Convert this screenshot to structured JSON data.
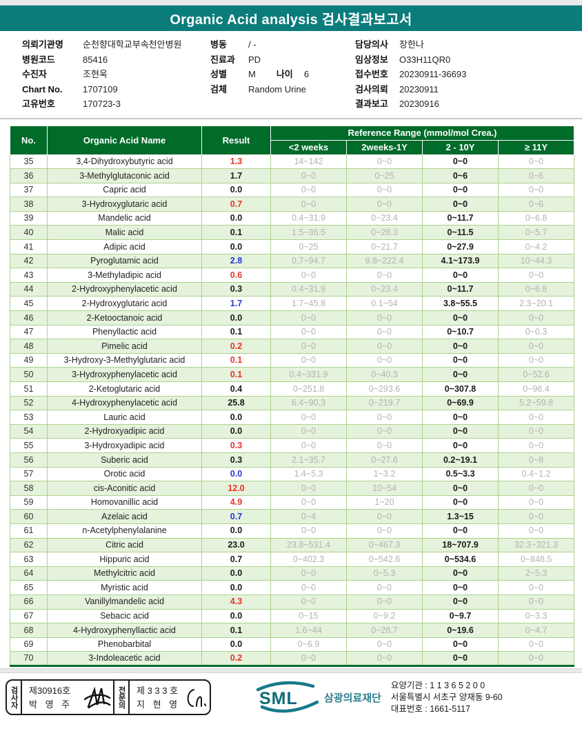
{
  "title": "Organic Acid analysis 검사결과보고서",
  "colors": {
    "banner_teal": "#0B7C7C",
    "table_header_green": "#016B2A",
    "row_alt_green": "#E5F2DC",
    "grid_green": "#ABD28D",
    "result_high_red": "#E8332A",
    "result_low_blue": "#2236D4",
    "reference_gray": "#B3B3B3",
    "logo_teal": "#157A8A"
  },
  "info": {
    "columns": [
      {
        "rows": [
          {
            "label": "의뢰기관명",
            "value": "순천향대학교부속천안병원"
          },
          {
            "label": "병원코드",
            "value": "85416"
          },
          {
            "label": "수진자",
            "value": "조현욱"
          },
          {
            "label": "Chart No.",
            "value": "1707109"
          },
          {
            "label": "고유번호",
            "value": "170723-3"
          }
        ]
      },
      {
        "rows": [
          {
            "label": "병동",
            "value": "/ -"
          },
          {
            "label": "진료과",
            "value": "PD"
          },
          {
            "label": "성별",
            "value": "M",
            "label2": "나이",
            "value2": "6"
          },
          {
            "label": "검체",
            "value": "Random Urine"
          }
        ]
      },
      {
        "rows": [
          {
            "label": "담당의사",
            "value": "장한나"
          },
          {
            "label": "임상정보",
            "value": "O33H11QR0"
          },
          {
            "label": "접수번호",
            "value": "20230911-36693"
          },
          {
            "label": "검사의뢰",
            "value": "20230911"
          },
          {
            "label": "결과보고",
            "value": "20230916"
          }
        ]
      }
    ]
  },
  "table": {
    "headers": {
      "no": "No.",
      "name": "Organic Acid Name",
      "result": "Result",
      "ref_group": "Reference Range (mmol/mol Crea.)",
      "age_cols": [
        "<2 weeks",
        "2weeks-1Y",
        "2 - 10Y",
        "≥ 11Y"
      ]
    },
    "rows": [
      {
        "no": "35",
        "name": "3,4-Dihydroxybutyric acid",
        "result": "1.3",
        "flag": "high",
        "ranges": [
          "14~142",
          "0~0",
          "0~0",
          "0~0"
        ]
      },
      {
        "no": "36",
        "name": "3-Methylglutaconic acid",
        "result": "1.7",
        "flag": "normal",
        "ranges": [
          "0~0",
          "0~25",
          "0~6",
          "0~6"
        ]
      },
      {
        "no": "37",
        "name": "Capric acid",
        "result": "0.0",
        "flag": "normal",
        "ranges": [
          "0~0",
          "0~0",
          "0~0",
          "0~0"
        ]
      },
      {
        "no": "38",
        "name": "3-Hydroxyglutaric acid",
        "result": "0.7",
        "flag": "high",
        "ranges": [
          "0~0",
          "0~0",
          "0~0",
          "0~6"
        ]
      },
      {
        "no": "39",
        "name": "Mandelic acid",
        "result": "0.0",
        "flag": "normal",
        "ranges": [
          "0.4~31.9",
          "0~23.4",
          "0~11.7",
          "0~6.8"
        ]
      },
      {
        "no": "40",
        "name": "Malic acid",
        "result": "0.1",
        "flag": "normal",
        "ranges": [
          "1.5~36.5",
          "0~28.3",
          "0~11.5",
          "0~5.7"
        ]
      },
      {
        "no": "41",
        "name": "Adipic acid",
        "result": "0.0",
        "flag": "normal",
        "ranges": [
          "0~25",
          "0~21.7",
          "0~27.9",
          "0~4.2"
        ]
      },
      {
        "no": "42",
        "name": "Pyroglutamic acid",
        "result": "2.8",
        "flag": "low",
        "ranges": [
          "0.7~94.7",
          "9.8~222.4",
          "4.1~173.9",
          "10~44.3"
        ]
      },
      {
        "no": "43",
        "name": "3-Methyladipic acid",
        "result": "0.6",
        "flag": "high",
        "ranges": [
          "0~0",
          "0~0",
          "0~0",
          "0~0"
        ]
      },
      {
        "no": "44",
        "name": "2-Hydroxyphenylacetic acid",
        "result": "0.3",
        "flag": "normal",
        "ranges": [
          "0.4~31.9",
          "0~23.4",
          "0~11.7",
          "0~6.8"
        ]
      },
      {
        "no": "45",
        "name": "2-Hydroxyglutaric acid",
        "result": "1.7",
        "flag": "low",
        "ranges": [
          "1.7~45.8",
          "0.1~54",
          "3.8~55.5",
          "2.3~20.1"
        ]
      },
      {
        "no": "46",
        "name": "2-Ketooctanoic acid",
        "result": "0.0",
        "flag": "normal",
        "ranges": [
          "0~0",
          "0~0",
          "0~0",
          "0~0"
        ]
      },
      {
        "no": "47",
        "name": "Phenyllactic acid",
        "result": "0.1",
        "flag": "normal",
        "ranges": [
          "0~0",
          "0~0",
          "0~10.7",
          "0~0.3"
        ]
      },
      {
        "no": "48",
        "name": "Pimelic acid",
        "result": "0.2",
        "flag": "high",
        "ranges": [
          "0~0",
          "0~0",
          "0~0",
          "0~0"
        ]
      },
      {
        "no": "49",
        "name": "3-Hydroxy-3-Methylglutaric acid",
        "result": "0.1",
        "flag": "high",
        "ranges": [
          "0~0",
          "0~0",
          "0~0",
          "0~0"
        ]
      },
      {
        "no": "50",
        "name": "3-Hydroxyphenylacetic acid",
        "result": "0.1",
        "flag": "high",
        "ranges": [
          "0.4~331.9",
          "0~40.3",
          "0~0",
          "0~52.6"
        ]
      },
      {
        "no": "51",
        "name": "2-Ketoglutaric acid",
        "result": "0.4",
        "flag": "normal",
        "ranges": [
          "0~251.8",
          "0~293.6",
          "0~307.8",
          "0~96.4"
        ]
      },
      {
        "no": "52",
        "name": "4-Hydroxyphenylacetic acid",
        "result": "25.8",
        "flag": "normal",
        "ranges": [
          "6.4~90.3",
          "0~219.7",
          "0~69.9",
          "5.2~59.8"
        ]
      },
      {
        "no": "53",
        "name": "Lauric acid",
        "result": "0.0",
        "flag": "normal",
        "ranges": [
          "0~0",
          "0~0",
          "0~0",
          "0~0"
        ]
      },
      {
        "no": "54",
        "name": "2-Hydroxyadipic acid",
        "result": "0.0",
        "flag": "normal",
        "ranges": [
          "0~0",
          "0~0",
          "0~0",
          "0~0"
        ]
      },
      {
        "no": "55",
        "name": "3-Hydroxyadipic acid",
        "result": "0.3",
        "flag": "high",
        "ranges": [
          "0~0",
          "0~0",
          "0~0",
          "0~0"
        ]
      },
      {
        "no": "56",
        "name": "Suberic acid",
        "result": "0.3",
        "flag": "normal",
        "ranges": [
          "2.1~35.7",
          "0~27.6",
          "0.2~19.1",
          "0~8"
        ]
      },
      {
        "no": "57",
        "name": "Orotic acid",
        "result": "0.0",
        "flag": "low",
        "ranges": [
          "1.4~5.3",
          "1~3.2",
          "0.5~3.3",
          "0.4~1.2"
        ]
      },
      {
        "no": "58",
        "name": "cis-Aconitic acid",
        "result": "12.0",
        "flag": "high",
        "ranges": [
          "0~0",
          "10~54",
          "0~0",
          "0~0"
        ]
      },
      {
        "no": "59",
        "name": "Homovanillic acid",
        "result": "4.9",
        "flag": "high",
        "ranges": [
          "0~0",
          "1~20",
          "0~0",
          "0~0"
        ]
      },
      {
        "no": "60",
        "name": "Azelaic acid",
        "result": "0.7",
        "flag": "low",
        "ranges": [
          "0~4",
          "0~0",
          "1.3~15",
          "0~0"
        ]
      },
      {
        "no": "61",
        "name": "n-Acetylphenylalanine",
        "result": "0.0",
        "flag": "normal",
        "ranges": [
          "0~0",
          "0~0",
          "0~0",
          "0~0"
        ]
      },
      {
        "no": "62",
        "name": "Citric acid",
        "result": "23.0",
        "flag": "normal",
        "ranges": [
          "23.8~531.4",
          "0~467.3",
          "18~707.9",
          "32.3~321.3"
        ]
      },
      {
        "no": "63",
        "name": "Hippuric acid",
        "result": "0.7",
        "flag": "normal",
        "ranges": [
          "0~402.3",
          "0~542.6",
          "0~534.6",
          "0~848.5"
        ]
      },
      {
        "no": "64",
        "name": "Methylcitric acid",
        "result": "0.0",
        "flag": "normal",
        "ranges": [
          "0~0",
          "0~5.3",
          "0~0",
          "2~5.3"
        ]
      },
      {
        "no": "65",
        "name": "Myristic acid",
        "result": "0.0",
        "flag": "normal",
        "ranges": [
          "0~0",
          "0~0",
          "0~0",
          "0~0"
        ]
      },
      {
        "no": "66",
        "name": "Vanillylmandelic acid",
        "result": "4.3",
        "flag": "high",
        "ranges": [
          "0~0",
          "0~0",
          "0~0",
          "0~0"
        ]
      },
      {
        "no": "67",
        "name": "Sebacic acid",
        "result": "0.0",
        "flag": "normal",
        "ranges": [
          "0~15",
          "0~9.2",
          "0~9.7",
          "0~3.3"
        ]
      },
      {
        "no": "68",
        "name": "4-Hydroxyphenyllactic acid",
        "result": "0.1",
        "flag": "normal",
        "ranges": [
          "1.6~44",
          "0~28.7",
          "0~19.6",
          "0~4.7"
        ]
      },
      {
        "no": "69",
        "name": "Phenobarbital",
        "result": "0.0",
        "flag": "normal",
        "ranges": [
          "0~6.9",
          "0~0",
          "0~0",
          "0~0"
        ]
      },
      {
        "no": "70",
        "name": "3-Indoleacetic acid",
        "result": "0.2",
        "flag": "high",
        "ranges": [
          "0~0",
          "0~0",
          "0~0",
          "0~0"
        ]
      }
    ]
  },
  "footer": {
    "examiner_role": "검사자",
    "examiner_cert": "제30916호",
    "examiner_name": "박 영 주",
    "specialist_role": "전문의",
    "specialist_cert": "제 3 3 3 호",
    "specialist_name": "지 현 영",
    "logo_text": "SML",
    "org_name": "삼광의료재단",
    "address_lines": [
      "요양기관 : 1 1 3 6 5 2 0 0",
      "서울특별시 서초구 양재동 9-60",
      "대표번호 : 1661-5117"
    ]
  }
}
